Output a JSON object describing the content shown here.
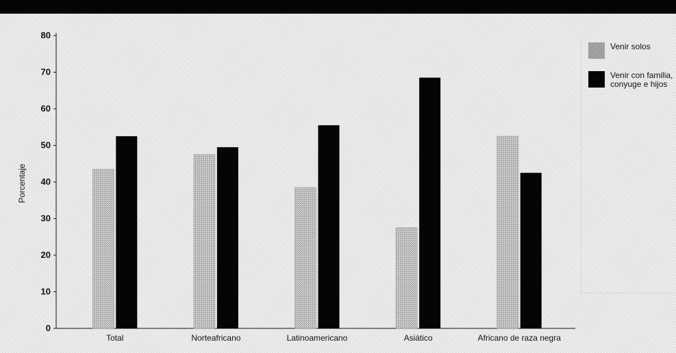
{
  "chart_data": {
    "type": "bar",
    "title": "",
    "ylabel": "Porcentaje",
    "xlabel": "",
    "ylim": [
      0,
      80
    ],
    "yticks": [
      0,
      10,
      20,
      30,
      40,
      50,
      60,
      70,
      80
    ],
    "grid": false,
    "legend_position": "top-right",
    "categories": [
      "Total",
      "Norteafricano",
      "Latinoamericano",
      "Asiático",
      "Africano de raza negra"
    ],
    "series": [
      {
        "name": "Venir solos",
        "values": [
          43.5,
          47.5,
          38.5,
          27.5,
          52.5
        ],
        "color": "#b8b8b8"
      },
      {
        "name": "Venir con familia, conyuge e hijos",
        "values": [
          52.5,
          49.5,
          55.5,
          68.5,
          42.5
        ],
        "color": "#050505"
      }
    ]
  }
}
